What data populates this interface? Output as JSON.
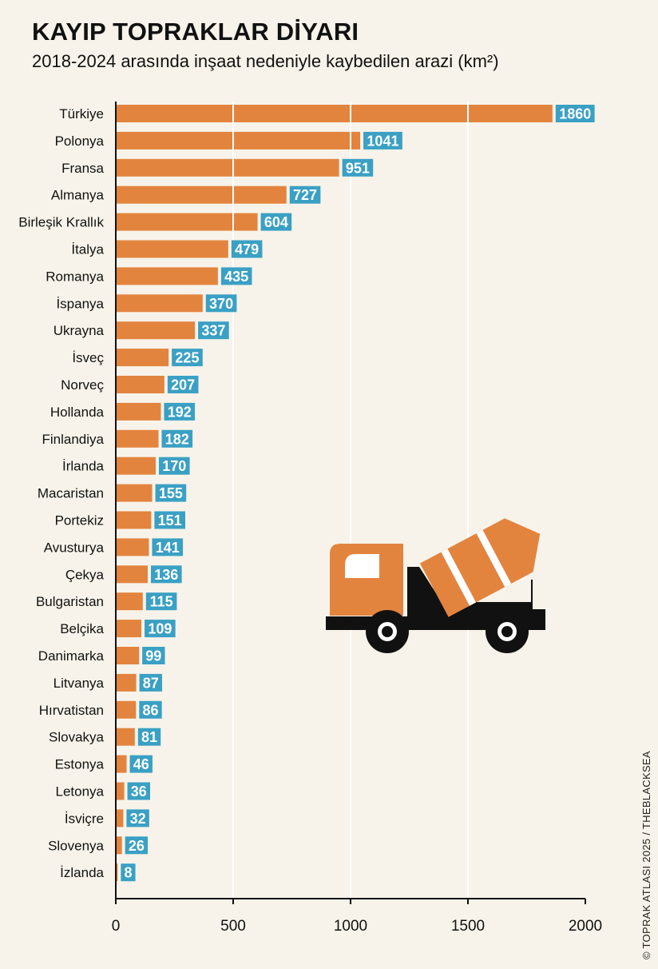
{
  "header": {
    "title": "KAYIP TOPRAKLAR DİYARI",
    "subtitle": "2018-2024 arasında inşaat nedeniyle kaybedilen arazi (km²)"
  },
  "credit": "© TOPRAK ATLASI 2025 / THEBLACKSEA",
  "colors": {
    "bar": "#e3843e",
    "label_box": "#3aa0c4",
    "axis": "#111111",
    "background": "#f7f3ea",
    "truck_orange": "#e3843e",
    "truck_black": "#111111"
  },
  "chart_data": {
    "type": "bar",
    "orientation": "horizontal",
    "title": "KAYIP TOPRAKLAR DİYARI",
    "subtitle": "2018-2024 arasında inşaat nedeniyle kaybedilen arazi (km²)",
    "xlabel": "",
    "ylabel": "",
    "xlim": [
      0,
      2000
    ],
    "xticks": [
      0,
      500,
      1000,
      1500,
      2000
    ],
    "grid": "vertical white lines at 500, 1000, 1500",
    "categories": [
      "Türkiye",
      "Polonya",
      "Fransa",
      "Almanya",
      "Birleşik Krallık",
      "İtalya",
      "Romanya",
      "İspanya",
      "Ukrayna",
      "İsveç",
      "Norveç",
      "Hollanda",
      "Finlandiya",
      "İrlanda",
      "Macaristan",
      "Portekiz",
      "Avusturya",
      "Çekya",
      "Bulgaristan",
      "Belçika",
      "Danimarka",
      "Litvanya",
      "Hırvatistan",
      "Slovakya",
      "Estonya",
      "Letonya",
      "İsviçre",
      "Slovenya",
      "İzlanda"
    ],
    "values": [
      1860,
      1041,
      951,
      727,
      604,
      479,
      435,
      370,
      337,
      225,
      207,
      192,
      182,
      170,
      155,
      151,
      141,
      136,
      115,
      109,
      99,
      87,
      86,
      81,
      46,
      36,
      32,
      26,
      8
    ]
  },
  "illustration": {
    "icon": "cement-mixer-truck-icon"
  }
}
